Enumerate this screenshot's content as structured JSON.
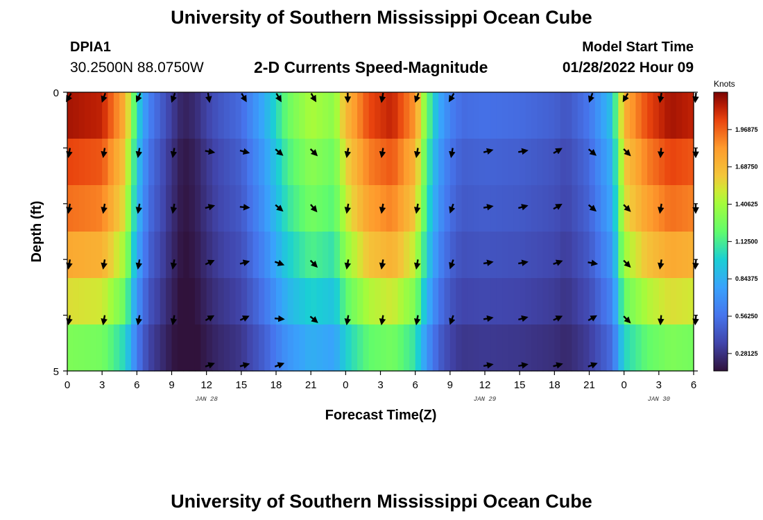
{
  "header": {
    "title": "University of Southern Mississippi Ocean Cube",
    "station": "DPIA1",
    "coords": "30.2500N  88.0750W",
    "subtitle": "2-D Currents Speed-Magnitude",
    "model_start_label": "Model Start Time",
    "model_start_value": "01/28/2022 Hour 09"
  },
  "footer": {
    "title": "University of Southern Mississippi Ocean Cube"
  },
  "chart_data": {
    "type": "heatmap",
    "title": "2-D Currents Speed-Magnitude",
    "xlabel": "Forecast Time(Z)",
    "ylabel": "Depth (ft)",
    "x_ticks": [
      "0",
      "3",
      "6",
      "9",
      "12",
      "15",
      "18",
      "21",
      "0",
      "3",
      "6",
      "9",
      "12",
      "15",
      "18",
      "21",
      "0",
      "3",
      "6"
    ],
    "x_hours": [
      0,
      3,
      6,
      9,
      12,
      15,
      18,
      21,
      24,
      27,
      30,
      33,
      36,
      39,
      42,
      45,
      48,
      51,
      54
    ],
    "x_range": [
      0,
      54
    ],
    "date_labels": [
      {
        "text": "JAN 28",
        "hour": 12
      },
      {
        "text": "JAN 29",
        "hour": 36
      },
      {
        "text": "JAN 30",
        "hour": 51
      }
    ],
    "y_ticks": [
      "0",
      "5"
    ],
    "y_range": [
      0,
      5
    ],
    "colorbar": {
      "unit": "Knots",
      "min": 0.15,
      "max": 2.25,
      "ticks": [
        "0.28125",
        "0.56250",
        "0.84375",
        "1.12500",
        "1.40625",
        "1.68750",
        "1.96875"
      ],
      "tick_values": [
        0.28125,
        0.5625,
        0.84375,
        1.125,
        1.40625,
        1.6875,
        1.96875
      ]
    },
    "speed_profile": {
      "hours": [
        0,
        3,
        5,
        6,
        7,
        8,
        9,
        10,
        11,
        12,
        13,
        14,
        15,
        17,
        19,
        21,
        23,
        24,
        26,
        28,
        30,
        31,
        32,
        33,
        34,
        36,
        39,
        42,
        43,
        45,
        47,
        48,
        50,
        52,
        54
      ],
      "values": [
        2.15,
        2.1,
        1.7,
        1.0,
        0.6,
        0.45,
        0.3,
        0.18,
        0.22,
        0.32,
        0.4,
        0.45,
        0.5,
        0.8,
        1.2,
        1.4,
        1.3,
        1.65,
        2.0,
        2.1,
        1.8,
        1.2,
        0.8,
        0.6,
        0.5,
        0.52,
        0.5,
        0.45,
        0.4,
        0.55,
        0.9,
        1.7,
        2.0,
        2.15,
        2.1
      ]
    },
    "layer_factors": [
      1.0,
      0.95,
      0.9,
      0.82,
      0.72,
      0.6
    ],
    "arrow_rows": [
      {
        "depth": 0.0,
        "angles": [
          120,
          110,
          115,
          110,
          80,
          60,
          60,
          60,
          90,
          100,
          110,
          120,
          null,
          null,
          null,
          110,
          120,
          100,
          95
        ]
      },
      {
        "depth": 1.0,
        "angles": [
          100,
          100,
          100,
          100,
          10,
          15,
          40,
          45,
          100,
          100,
          100,
          100,
          -15,
          -10,
          -30,
          40,
          45,
          95,
          90
        ]
      },
      {
        "depth": 2.0,
        "angles": [
          100,
          100,
          100,
          100,
          -15,
          5,
          40,
          50,
          100,
          100,
          100,
          110,
          -10,
          -15,
          -30,
          40,
          45,
          100,
          90
        ]
      },
      {
        "depth": 3.0,
        "angles": [
          100,
          100,
          100,
          100,
          -25,
          -15,
          20,
          45,
          100,
          100,
          100,
          110,
          -10,
          -10,
          -20,
          10,
          45,
          100,
          95
        ]
      },
      {
        "depth": 4.0,
        "angles": [
          100,
          100,
          100,
          100,
          -30,
          -25,
          5,
          40,
          100,
          100,
          100,
          110,
          -10,
          -15,
          -25,
          -30,
          45,
          95,
          95
        ]
      },
      {
        "depth": 5.0,
        "angles": [
          null,
          null,
          null,
          null,
          -20,
          -15,
          -20,
          null,
          null,
          null,
          null,
          null,
          -10,
          -10,
          -15,
          -20,
          null,
          null,
          null
        ]
      }
    ]
  }
}
